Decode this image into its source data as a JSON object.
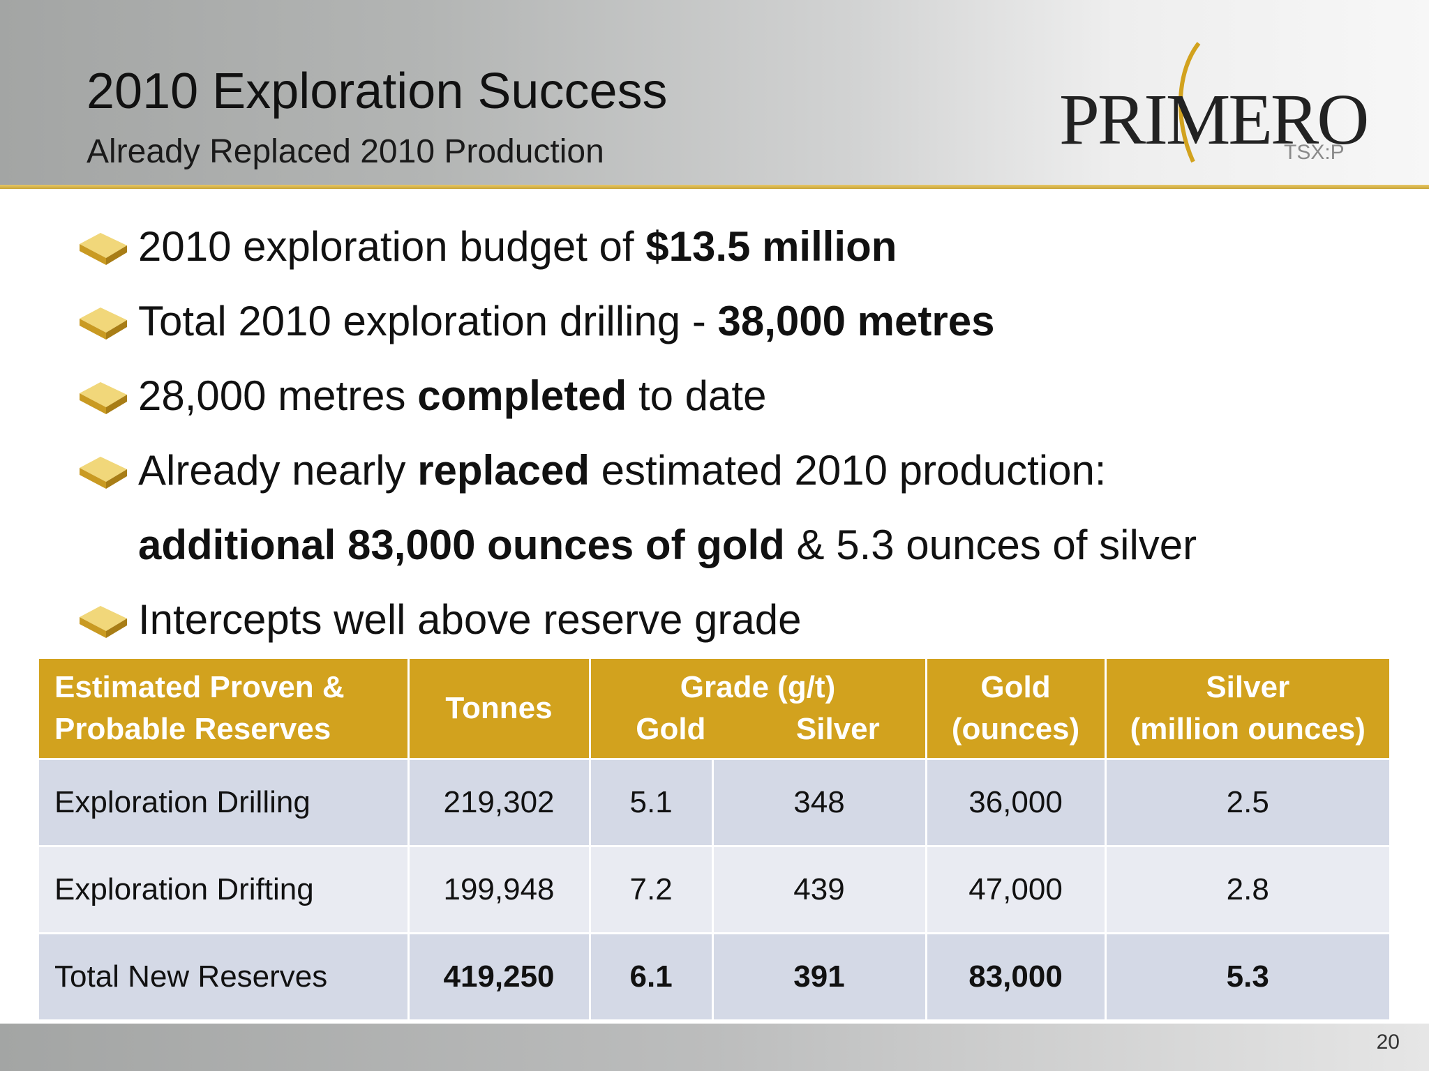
{
  "header": {
    "title": "2010 Exploration Success",
    "subtitle": "Already Replaced 2010 Production"
  },
  "logo": {
    "name": "PRIMERO",
    "ticker": "TSX:P"
  },
  "bullets": [
    {
      "pre": "2010 exploration budget of ",
      "bold": "$13.5 million",
      "post": ""
    },
    {
      "pre": "Total 2010 exploration drilling - ",
      "bold": "38,000 metres",
      "post": ""
    },
    {
      "pre": "28,000 metres ",
      "bold": "completed",
      "post": " to date"
    },
    {
      "pre": "Already nearly ",
      "bold": "replaced",
      "post": " estimated 2010 production:"
    },
    {
      "pre": "",
      "bold": "additional 83,000 ounces of gold",
      "post": " & 5.3 ounces of silver"
    },
    {
      "pre": "Intercepts well above reserve grade",
      "bold": "",
      "post": ""
    }
  ],
  "table": {
    "headers": {
      "reserves_line1": "Estimated Proven &",
      "reserves_line2": "Probable Reserves",
      "tonnes": "Tonnes",
      "grade": "Grade (g/t)",
      "grade_gold": "Gold",
      "grade_silver": "Silver",
      "gold_line1": "Gold",
      "gold_line2": "(ounces)",
      "silver_line1": "Silver",
      "silver_line2": "(million ounces)"
    },
    "rows": [
      {
        "label": "Exploration Drilling",
        "tonnes": "219,302",
        "grade_gold": "5.1",
        "grade_silver": "348",
        "gold_oz": "36,000",
        "silver_moz": "2.5"
      },
      {
        "label": "Exploration Drifting",
        "tonnes": "199,948",
        "grade_gold": "7.2",
        "grade_silver": "439",
        "gold_oz": "47,000",
        "silver_moz": "2.8"
      },
      {
        "label": "Total New Reserves",
        "tonnes": "419,250",
        "grade_gold": "6.1",
        "grade_silver": "391",
        "gold_oz": "83,000",
        "silver_moz": "5.3"
      }
    ]
  },
  "footer": {
    "page_number": "20"
  },
  "colors": {
    "accent_gold": "#d2a21e",
    "row_dark": "#d4d9e6",
    "row_light": "#e9ebf2"
  }
}
